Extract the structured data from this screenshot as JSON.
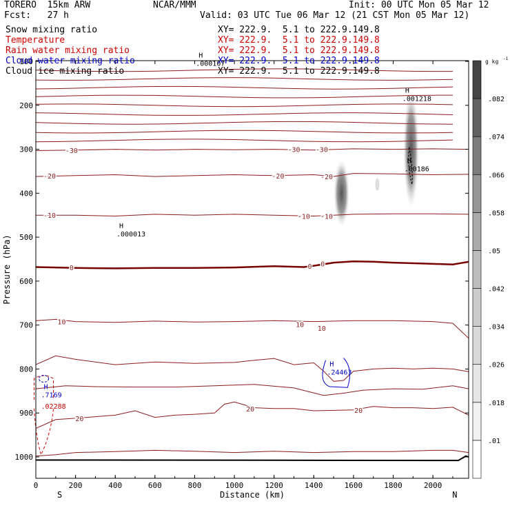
{
  "header": {
    "model": "TORERO  15km ARW",
    "org": "NCAR/MMM",
    "init": "Init: 00 UTC Mon 05 Mar 12",
    "fcst": "Fcst:   27 h",
    "valid": "Valid: 03 UTC Tue 06 Mar 12 (21 CST Mon 05 Mar 12)"
  },
  "legend": [
    {
      "label": "Snow mixing ratio",
      "color": "#000000",
      "xy": ""
    },
    {
      "label": "Temperature",
      "color": "#cc0000",
      "xy": "XY= 222.9.  5.1 to 222.9.149.8"
    },
    {
      "label": "Rain water mixing ratio",
      "color": "#cc0000",
      "xy": "XY= 222.9.  5.1 to 222.9.149.8"
    },
    {
      "label": "Cloud water mixing ratio",
      "color": "#0000cc",
      "xy": "XY= 222.9.  5.1 to 222.9.149.8"
    },
    {
      "label": "Cloud ice mixing ratio",
      "color": "#000000",
      "xy": "XY= 222.9.  5.1 to 222.9.149.8"
    }
  ],
  "header_xy": "XY= 222.9.  5.1 to 222.9.149.8",
  "colors": {
    "temperature": "#8b1a1a",
    "zero_line": "#7a0000",
    "rain": "#cc0000",
    "cloud_water": "#0000cc",
    "grid": "#000000"
  },
  "chart_data": {
    "type": "contour",
    "xlabel": "Distance (km)",
    "ylabel": "Pressure (hPa)",
    "xlim": [
      0,
      2180
    ],
    "ylim": [
      1000,
      100
    ],
    "y_bottom": 1045,
    "x_ticks": [
      0,
      200,
      400,
      600,
      800,
      1000,
      1200,
      1400,
      1600,
      1800,
      2000
    ],
    "y_ticks": [
      100,
      200,
      300,
      400,
      500,
      600,
      700,
      800,
      900,
      1000
    ],
    "x_end_labels": {
      "left": "S",
      "right": "N"
    },
    "colorbar": {
      "unit": "g kg",
      "unit_sup": "-1",
      "levels": [
        ".01",
        ".018",
        ".026",
        ".034",
        ".042",
        ".05",
        ".058",
        ".066",
        ".074",
        ".082"
      ],
      "colors": [
        "#ffffff",
        "#f2f2f2",
        "#e6e6e6",
        "#d9d9d9",
        "#cccccc",
        "#bdbdbd",
        "#aaaaaa",
        "#969696",
        "#7c7c7c",
        "#626262",
        "#444444"
      ]
    },
    "temperature_contours": [
      {
        "label": "-30",
        "points": [
          [
            0,
            303
          ],
          [
            200,
            302
          ],
          [
            400,
            300
          ],
          [
            600,
            302
          ],
          [
            800,
            300
          ],
          [
            1000,
            301
          ],
          [
            1200,
            300
          ],
          [
            1400,
            302
          ],
          [
            1600,
            299
          ],
          [
            1800,
            300
          ],
          [
            2000,
            299
          ],
          [
            2180,
            300
          ]
        ],
        "labels_at": [
          [
            180,
            302
          ],
          [
            1300,
            300
          ],
          [
            1440,
            300
          ]
        ]
      },
      {
        "label": "-20",
        "points": [
          [
            0,
            362
          ],
          [
            200,
            360
          ],
          [
            400,
            358
          ],
          [
            600,
            362
          ],
          [
            800,
            360
          ],
          [
            1000,
            358
          ],
          [
            1200,
            360
          ],
          [
            1400,
            358
          ],
          [
            1500,
            362
          ],
          [
            1600,
            355
          ],
          [
            1800,
            356
          ],
          [
            2000,
            358
          ],
          [
            2180,
            357
          ]
        ],
        "labels_at": [
          [
            -20,
            360
          ],
          [
            1220,
            360
          ],
          [
            1465,
            362
          ]
        ]
      },
      {
        "label": "-10",
        "points": [
          [
            0,
            450
          ],
          [
            200,
            450
          ],
          [
            400,
            452
          ],
          [
            600,
            448
          ],
          [
            800,
            450
          ],
          [
            1000,
            448
          ],
          [
            1200,
            450
          ],
          [
            1400,
            452
          ],
          [
            1500,
            450
          ],
          [
            1600,
            448
          ],
          [
            1800,
            447
          ],
          [
            2000,
            447
          ],
          [
            2180,
            448
          ]
        ],
        "labels_at": [
          [
            -20,
            450
          ],
          [
            1350,
            452
          ],
          [
            1465,
            452
          ]
        ]
      },
      {
        "label": "0",
        "points": [
          [
            0,
            568
          ],
          [
            200,
            570
          ],
          [
            400,
            571
          ],
          [
            600,
            570
          ],
          [
            800,
            570
          ],
          [
            1000,
            569
          ],
          [
            1200,
            566
          ],
          [
            1350,
            568
          ],
          [
            1400,
            565
          ],
          [
            1500,
            558
          ],
          [
            1600,
            555
          ],
          [
            1700,
            556
          ],
          [
            1800,
            558
          ],
          [
            1950,
            560
          ],
          [
            2100,
            562
          ],
          [
            2180,
            556
          ]
        ],
        "labels_at": [
          [
            180,
            569
          ],
          [
            1380,
            566
          ],
          [
            1445,
            560
          ]
        ],
        "bold": true
      },
      {
        "label": "10",
        "points": [
          [
            0,
            690
          ],
          [
            100,
            687
          ],
          [
            200,
            692
          ],
          [
            400,
            694
          ],
          [
            600,
            691
          ],
          [
            800,
            693
          ],
          [
            1000,
            692
          ],
          [
            1200,
            690
          ],
          [
            1400,
            692
          ],
          [
            1600,
            690
          ],
          [
            1800,
            690
          ],
          [
            2000,
            692
          ],
          [
            2100,
            696
          ],
          [
            2180,
            730
          ]
        ],
        "labels_at": [
          [
            130,
            692
          ],
          [
            1330,
            698
          ],
          [
            1440,
            707
          ]
        ]
      },
      {
        "label": "",
        "points": [
          [
            0,
            790
          ],
          [
            100,
            770
          ],
          [
            200,
            778
          ],
          [
            400,
            790
          ],
          [
            600,
            784
          ],
          [
            800,
            787
          ],
          [
            1000,
            785
          ],
          [
            1100,
            780
          ],
          [
            1200,
            776
          ],
          [
            1300,
            790
          ],
          [
            1400,
            786
          ],
          [
            1450,
            805
          ],
          [
            1500,
            828
          ],
          [
            1550,
            826
          ],
          [
            1600,
            805
          ],
          [
            1700,
            800
          ],
          [
            1800,
            798
          ],
          [
            1900,
            800
          ],
          [
            2000,
            798
          ],
          [
            2100,
            800
          ],
          [
            2180,
            806
          ]
        ],
        "labels_at": []
      },
      {
        "label": "20",
        "points": [
          [
            0,
            935
          ],
          [
            100,
            915
          ],
          [
            200,
            912
          ],
          [
            400,
            905
          ],
          [
            500,
            895
          ],
          [
            600,
            910
          ],
          [
            700,
            905
          ],
          [
            800,
            903
          ],
          [
            900,
            900
          ],
          [
            950,
            880
          ],
          [
            1000,
            875
          ],
          [
            1100,
            888
          ],
          [
            1200,
            890
          ],
          [
            1300,
            890
          ],
          [
            1400,
            895
          ],
          [
            1600,
            893
          ],
          [
            1700,
            885
          ],
          [
            1800,
            888
          ],
          [
            1900,
            888
          ],
          [
            2000,
            890
          ],
          [
            2100,
            887
          ],
          [
            2180,
            905
          ]
        ],
        "labels_at": [
          [
            220,
            912
          ],
          [
            1080,
            890
          ],
          [
            1625,
            893
          ]
        ]
      },
      {
        "label": "",
        "points": [
          [
            0,
            845
          ],
          [
            150,
            838
          ],
          [
            300,
            840
          ],
          [
            500,
            841
          ],
          [
            700,
            841
          ],
          [
            900,
            838
          ],
          [
            1100,
            835
          ],
          [
            1300,
            843
          ],
          [
            1450,
            860
          ],
          [
            1550,
            855
          ],
          [
            1650,
            848
          ],
          [
            1800,
            845
          ],
          [
            1950,
            846
          ],
          [
            2100,
            838
          ],
          [
            2180,
            845
          ]
        ],
        "labels_at": []
      },
      {
        "label": "",
        "points": [
          [
            0,
            998
          ],
          [
            100,
            995
          ],
          [
            200,
            990
          ],
          [
            400,
            988
          ],
          [
            600,
            985
          ],
          [
            800,
            987
          ],
          [
            1000,
            990
          ],
          [
            1200,
            987
          ],
          [
            1400,
            990
          ],
          [
            1600,
            988
          ],
          [
            1800,
            988
          ],
          [
            2000,
            985
          ],
          [
            2100,
            985
          ],
          [
            2180,
            990
          ]
        ],
        "labels_at": []
      }
    ],
    "upper_contours": [
      120,
      140,
      160,
      180,
      200,
      220,
      240,
      260,
      280
    ],
    "highs": [
      {
        "label": "H",
        "value": ".000107",
        "x": 820,
        "p": 110,
        "color": "#000000"
      },
      {
        "label": "H",
        "value": ".001218",
        "x": 1860,
        "p": 190,
        "color": "#000000"
      },
      {
        "label": "H",
        "value": ".00186",
        "x": 1870,
        "p": 350,
        "color": "#000000"
      },
      {
        "label": "H",
        "value": ".000013",
        "x": 420,
        "p": 498,
        "color": "#000000"
      },
      {
        "label": "H",
        "value": ".24463",
        "x": 1480,
        "p": 813,
        "color": "#0000cc"
      },
      {
        "label": "H",
        "value": ".7169",
        "x": 40,
        "p": 864,
        "color": "#0000cc"
      },
      {
        "label": "",
        "value": ".02288",
        "x": 40,
        "p": 890,
        "color": "#cc0000"
      }
    ],
    "snow_features": [
      {
        "x": 1540,
        "p_top": 320,
        "p_bottom": 480,
        "max_level": 0.07
      },
      {
        "x": 1890,
        "p_top": 160,
        "p_bottom": 440,
        "max_level": 0.09
      }
    ]
  }
}
